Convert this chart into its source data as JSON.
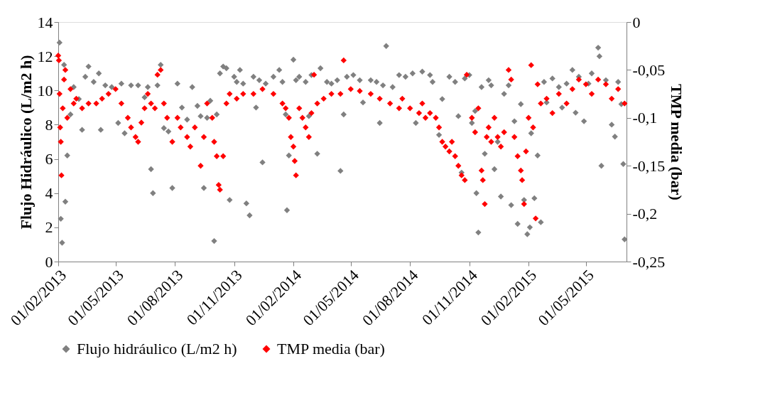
{
  "chart_data": {
    "type": "scatter",
    "ylabel": "Flujo Hidráulico (L/m2 h)",
    "y2label": "TMP media (bar)",
    "marker": "diamond",
    "grid": false,
    "legend": "bottom",
    "xlim": [
      "2013-02-01",
      "2015-07-03"
    ],
    "xticks": [
      {
        "value": "2013-02-01",
        "label": "01/02/2013"
      },
      {
        "value": "2013-05-01",
        "label": "01/05/2013"
      },
      {
        "value": "2013-08-01",
        "label": "01/08/2013"
      },
      {
        "value": "2013-11-01",
        "label": "01/11/2013"
      },
      {
        "value": "2014-02-01",
        "label": "01/02/2014"
      },
      {
        "value": "2014-05-01",
        "label": "01/05/2014"
      },
      {
        "value": "2014-08-01",
        "label": "01/08/2014"
      },
      {
        "value": "2014-11-01",
        "label": "01/11/2014"
      },
      {
        "value": "2015-02-01",
        "label": "01/02/2015"
      },
      {
        "value": "2015-05-01",
        "label": "01/05/2015"
      }
    ],
    "ylim": [
      0,
      14
    ],
    "yticks": [
      0,
      2,
      4,
      6,
      8,
      10,
      12,
      14
    ],
    "y2lim": [
      -0.25,
      0
    ],
    "y2ticks": [
      {
        "value": -0.25,
        "label": "-0,25"
      },
      {
        "value": -0.2,
        "label": "-0,2"
      },
      {
        "value": -0.15,
        "label": "-0,15"
      },
      {
        "value": -0.1,
        "label": "-0,1"
      },
      {
        "value": -0.05,
        "label": "-0,05"
      },
      0
    ],
    "series": [
      {
        "name": "Flujo hidráulico (L/m2 h)",
        "color": "#808080",
        "x": [
          "2013-02-03",
          "2013-02-05",
          "2013-02-07",
          "2013-02-10",
          "2013-02-12",
          "2013-02-15",
          "2013-02-20",
          "2013-02-25",
          "2013-03-05",
          "2013-03-10",
          "2013-03-15",
          "2013-03-20",
          "2013-03-28",
          "2013-04-05",
          "2013-04-08",
          "2013-04-15",
          "2013-04-25",
          "2013-05-05",
          "2013-05-10",
          "2013-05-15",
          "2013-05-25",
          "2013-06-05",
          "2013-06-15",
          "2013-06-20",
          "2013-06-25",
          "2013-06-28",
          "2013-07-05",
          "2013-07-10",
          "2013-07-15",
          "2013-07-22",
          "2013-07-28",
          "2013-08-05",
          "2013-08-12",
          "2013-08-20",
          "2013-08-28",
          "2013-09-05",
          "2013-09-10",
          "2013-09-15",
          "2013-09-20",
          "2013-09-25",
          "2013-10-01",
          "2013-10-05",
          "2013-10-10",
          "2013-10-15",
          "2013-10-20",
          "2013-10-25",
          "2013-11-01",
          "2013-11-05",
          "2013-11-10",
          "2013-11-15",
          "2013-11-20",
          "2013-11-25",
          "2013-12-01",
          "2013-12-05",
          "2013-12-10",
          "2013-12-15",
          "2013-12-20",
          "2014-01-01",
          "2014-01-10",
          "2014-01-15",
          "2014-01-20",
          "2014-01-22",
          "2014-01-25",
          "2014-02-01",
          "2014-02-05",
          "2014-02-10",
          "2014-02-20",
          "2014-02-25",
          "2014-03-01",
          "2014-03-10",
          "2014-03-15",
          "2014-03-25",
          "2014-04-01",
          "2014-04-10",
          "2014-04-15",
          "2014-04-20",
          "2014-04-25",
          "2014-05-05",
          "2014-05-15",
          "2014-05-20",
          "2014-06-01",
          "2014-06-10",
          "2014-06-15",
          "2014-06-20",
          "2014-06-25",
          "2014-07-05",
          "2014-07-15",
          "2014-07-25",
          "2014-08-05",
          "2014-08-10",
          "2014-08-20",
          "2014-09-01",
          "2014-09-05",
          "2014-09-15",
          "2014-09-20",
          "2014-10-01",
          "2014-10-10",
          "2014-10-15",
          "2014-10-20",
          "2014-10-25",
          "2014-11-01",
          "2014-11-05",
          "2014-11-10",
          "2014-11-12",
          "2014-11-15",
          "2014-11-20",
          "2014-11-25",
          "2014-12-01",
          "2014-12-05",
          "2014-12-10",
          "2014-12-15",
          "2014-12-20",
          "2014-12-25",
          "2015-01-01",
          "2015-01-05",
          "2015-01-10",
          "2015-01-15",
          "2015-01-20",
          "2015-01-25",
          "2015-01-30",
          "2015-02-03",
          "2015-02-05",
          "2015-02-10",
          "2015-02-15",
          "2015-02-20",
          "2015-02-25",
          "2015-03-01",
          "2015-03-10",
          "2015-03-20",
          "2015-03-25",
          "2015-04-01",
          "2015-04-10",
          "2015-04-15",
          "2015-04-20",
          "2015-04-28",
          "2015-05-05",
          "2015-05-10",
          "2015-05-20",
          "2015-05-22",
          "2015-05-25",
          "2015-06-01",
          "2015-06-10",
          "2015-06-15",
          "2015-06-20",
          "2015-06-25",
          "2015-06-28",
          "2015-06-30"
        ],
        "values": [
          12.8,
          2.5,
          1.1,
          11.5,
          3.5,
          6.2,
          8.6,
          10.2,
          9.5,
          7.7,
          10.8,
          11.4,
          10.5,
          11.0,
          7.7,
          10.3,
          10.2,
          8.1,
          10.4,
          7.5,
          10.3,
          10.3,
          9.6,
          10.2,
          5.4,
          4.0,
          10.3,
          11.5,
          7.8,
          7.6,
          4.3,
          10.4,
          9.0,
          8.3,
          10.2,
          9.1,
          8.5,
          4.3,
          8.4,
          9.4,
          1.2,
          8.6,
          11.0,
          11.4,
          11.3,
          3.6,
          10.8,
          10.5,
          11.2,
          10.4,
          3.4,
          2.7,
          10.8,
          9.0,
          10.6,
          5.8,
          10.4,
          10.8,
          11.2,
          10.5,
          8.6,
          3.0,
          6.2,
          11.8,
          10.6,
          10.8,
          10.5,
          8.5,
          10.9,
          6.3,
          11.3,
          10.5,
          10.4,
          10.6,
          5.3,
          8.6,
          10.8,
          10.9,
          10.6,
          9.3,
          10.6,
          10.5,
          8.1,
          10.3,
          12.6,
          10.2,
          10.9,
          10.8,
          11.0,
          8.1,
          11.1,
          10.9,
          10.5,
          7.4,
          9.5,
          10.8,
          10.5,
          8.5,
          5.2,
          10.7,
          10.9,
          8.1,
          8.8,
          4.0,
          1.7,
          10.2,
          6.3,
          10.6,
          10.3,
          5.4,
          7.0,
          3.8,
          9.8,
          10.3,
          3.3,
          8.2,
          2.2,
          9.2,
          3.6,
          1.6,
          2.0,
          7.5,
          3.7,
          6.2,
          2.3,
          10.5,
          9.3,
          10.7,
          10.2,
          9.0,
          10.4,
          11.2,
          8.7,
          10.8,
          8.2,
          10.4,
          11.0,
          12.5,
          12.0,
          5.6,
          10.6,
          8.0,
          7.3,
          10.5,
          9.2,
          5.7,
          1.3
        ]
      },
      {
        "name": "TMP media (bar)",
        "color": "#ff0000",
        "axis": "y2",
        "x": [
          "2013-02-01",
          "2013-02-02",
          "2013-02-03",
          "2013-02-04",
          "2013-02-05",
          "2013-02-06",
          "2013-02-08",
          "2013-02-10",
          "2013-02-12",
          "2013-02-15",
          "2013-02-20",
          "2013-02-25",
          "2013-03-01",
          "2013-03-10",
          "2013-03-20",
          "2013-04-01",
          "2013-04-10",
          "2013-04-20",
          "2013-05-01",
          "2013-05-10",
          "2013-05-20",
          "2013-05-25",
          "2013-06-01",
          "2013-06-05",
          "2013-06-10",
          "2013-06-15",
          "2013-06-20",
          "2013-06-25",
          "2013-07-01",
          "2013-07-05",
          "2013-07-10",
          "2013-07-15",
          "2013-07-20",
          "2013-07-28",
          "2013-08-05",
          "2013-08-10",
          "2013-08-20",
          "2013-08-25",
          "2013-09-01",
          "2013-09-10",
          "2013-09-15",
          "2013-09-20",
          "2013-09-28",
          "2013-10-01",
          "2013-10-05",
          "2013-10-08",
          "2013-10-10",
          "2013-10-15",
          "2013-10-20",
          "2013-10-25",
          "2013-11-05",
          "2013-11-15",
          "2013-12-01",
          "2013-12-15",
          "2014-01-01",
          "2014-01-15",
          "2014-01-20",
          "2014-01-25",
          "2014-01-28",
          "2014-02-01",
          "2014-02-03",
          "2014-02-05",
          "2014-02-10",
          "2014-02-15",
          "2014-02-20",
          "2014-02-25",
          "2014-03-01",
          "2014-03-05",
          "2014-03-10",
          "2014-03-20",
          "2014-04-01",
          "2014-04-15",
          "2014-04-20",
          "2014-05-01",
          "2014-05-15",
          "2014-06-01",
          "2014-06-15",
          "2014-07-01",
          "2014-07-15",
          "2014-07-20",
          "2014-08-01",
          "2014-08-15",
          "2014-08-20",
          "2014-08-25",
          "2014-09-01",
          "2014-09-10",
          "2014-09-15",
          "2014-09-20",
          "2014-09-25",
          "2014-10-01",
          "2014-10-05",
          "2014-10-10",
          "2014-10-15",
          "2014-10-20",
          "2014-10-25",
          "2014-10-28",
          "2014-11-05",
          "2014-11-10",
          "2014-11-15",
          "2014-11-20",
          "2014-11-22",
          "2014-11-25",
          "2014-11-28",
          "2014-12-01",
          "2014-12-05",
          "2014-12-10",
          "2014-12-15",
          "2014-12-20",
          "2014-12-25",
          "2015-01-01",
          "2015-01-05",
          "2015-01-10",
          "2015-01-15",
          "2015-01-20",
          "2015-01-22",
          "2015-01-25",
          "2015-01-28",
          "2015-02-01",
          "2015-02-05",
          "2015-02-08",
          "2015-02-12",
          "2015-02-15",
          "2015-02-20",
          "2015-03-01",
          "2015-03-10",
          "2015-03-20",
          "2015-04-01",
          "2015-04-10",
          "2015-04-20",
          "2015-05-01",
          "2015-05-10",
          "2015-05-20",
          "2015-06-01",
          "2015-06-10",
          "2015-06-20",
          "2015-06-30"
        ],
        "values": [
          -0.035,
          -0.04,
          -0.075,
          -0.11,
          -0.125,
          -0.16,
          -0.09,
          -0.06,
          -0.05,
          -0.1,
          -0.07,
          -0.085,
          -0.08,
          -0.09,
          -0.085,
          -0.085,
          -0.08,
          -0.075,
          -0.07,
          -0.085,
          -0.1,
          -0.11,
          -0.12,
          -0.125,
          -0.105,
          -0.09,
          -0.075,
          -0.085,
          -0.09,
          -0.055,
          -0.05,
          -0.085,
          -0.1,
          -0.125,
          -0.1,
          -0.11,
          -0.12,
          -0.13,
          -0.11,
          -0.15,
          -0.12,
          -0.085,
          -0.1,
          -0.125,
          -0.14,
          -0.17,
          -0.175,
          -0.14,
          -0.085,
          -0.075,
          -0.08,
          -0.075,
          -0.075,
          -0.07,
          -0.075,
          -0.085,
          -0.09,
          -0.1,
          -0.12,
          -0.13,
          -0.145,
          -0.16,
          -0.09,
          -0.1,
          -0.11,
          -0.12,
          -0.095,
          -0.055,
          -0.085,
          -0.08,
          -0.075,
          -0.075,
          -0.04,
          -0.07,
          -0.072,
          -0.075,
          -0.08,
          -0.085,
          -0.09,
          -0.08,
          -0.09,
          -0.095,
          -0.085,
          -0.1,
          -0.095,
          -0.1,
          -0.11,
          -0.125,
          -0.13,
          -0.135,
          -0.125,
          -0.14,
          -0.15,
          -0.16,
          -0.165,
          -0.055,
          -0.1,
          -0.115,
          -0.09,
          -0.155,
          -0.165,
          -0.19,
          -0.12,
          -0.11,
          -0.125,
          -0.1,
          -0.12,
          -0.13,
          -0.115,
          -0.05,
          -0.06,
          -0.12,
          -0.14,
          -0.155,
          -0.165,
          -0.19,
          -0.135,
          -0.1,
          -0.045,
          -0.11,
          -0.205,
          -0.065,
          -0.085,
          -0.08,
          -0.095,
          -0.075,
          -0.085,
          -0.07,
          -0.06,
          -0.065,
          -0.075,
          -0.06,
          -0.065,
          -0.08,
          -0.07,
          -0.085
        ]
      }
    ]
  }
}
